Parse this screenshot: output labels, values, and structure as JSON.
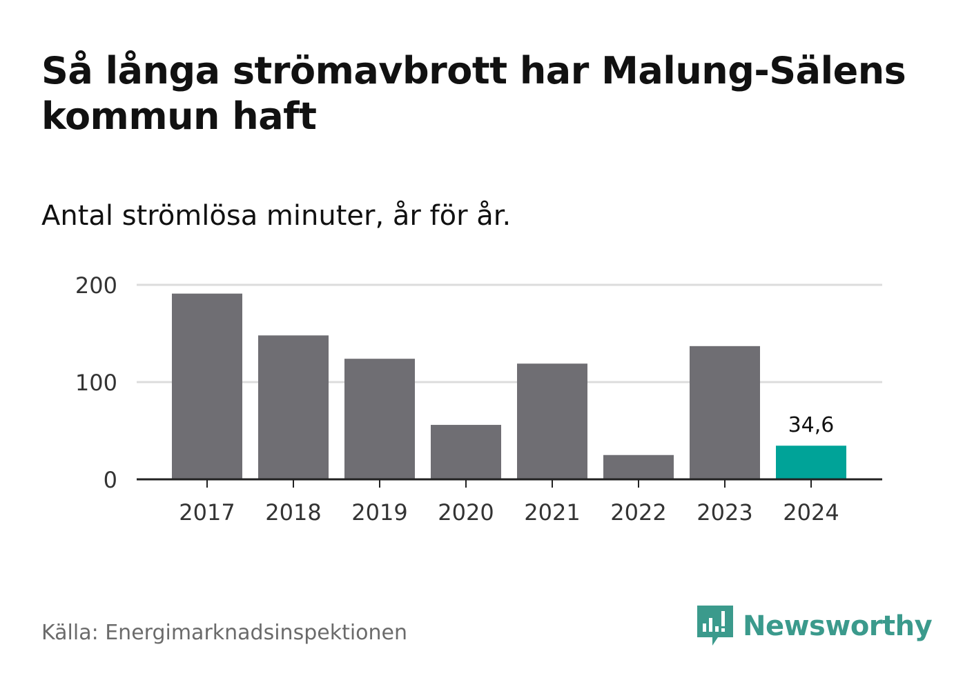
{
  "title": "Så långa strömavbrott har Malung-Sälens kommun haft",
  "subtitle": "Antal strömlösa minuter, år för år.",
  "source": "Källa: Energimarknadsinspektionen",
  "brand": {
    "name": "Newsworthy",
    "icon": "newsworthy-logo-icon",
    "color": "#3b9a8c"
  },
  "colors": {
    "bar": "#6f6e73",
    "highlight": "#00a398",
    "grid": "#dcdcdc",
    "axis": "#222222",
    "tick_text": "#333333"
  },
  "chart_data": {
    "type": "bar",
    "categories": [
      "2017",
      "2018",
      "2019",
      "2020",
      "2021",
      "2022",
      "2023",
      "2024"
    ],
    "values": [
      191,
      148,
      124,
      56,
      119,
      25,
      137,
      34.6
    ],
    "highlight_index": 7,
    "data_labels": [
      {
        "index": 7,
        "text": "34,6"
      }
    ],
    "yticks": [
      0,
      100,
      200
    ],
    "ylim": [
      0,
      200
    ],
    "grid": true,
    "xlabel": "",
    "ylabel": "",
    "title": "Så långa strömavbrott har Malung-Sälens kommun haft"
  }
}
